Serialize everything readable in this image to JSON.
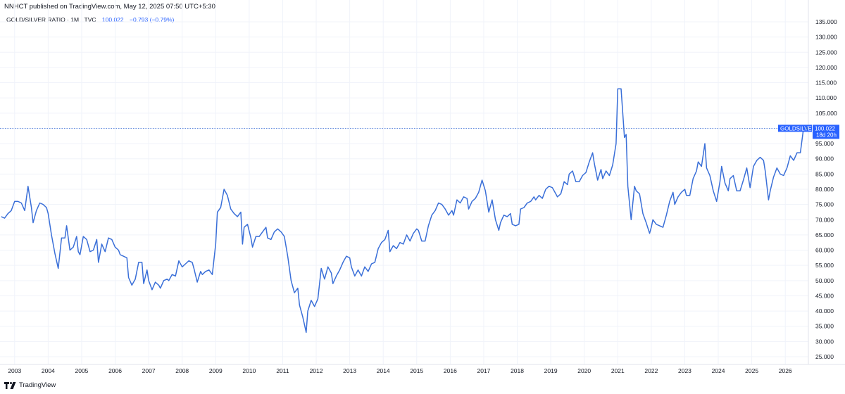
{
  "header": {
    "published": "NNHCT published on TradingView.com, May 12, 2025 07:50 UTC+5:30"
  },
  "legend": {
    "symbol": "GOLD/SILVER RATIO · 1M · TVC",
    "value": "100.022",
    "change": "−0.793 (−0.79%)"
  },
  "price_label": {
    "ticker": "GOLDSILVER",
    "value": "100.022",
    "countdown": "18d 20h"
  },
  "footer": {
    "brand": "TradingView"
  },
  "colors": {
    "line": "#3a6fd8",
    "accent": "#2962ff",
    "badge": "#2962ff"
  },
  "chart_data": {
    "type": "line",
    "ylim": [
      22.5,
      137.5
    ],
    "y_ticks": [
      "25.000",
      "30.000",
      "35.000",
      "40.000",
      "45.000",
      "50.000",
      "55.000",
      "60.000",
      "65.000",
      "70.000",
      "75.000",
      "80.000",
      "85.000",
      "90.000",
      "95.000",
      "100.000",
      "105.000",
      "110.000",
      "115.000",
      "120.000",
      "125.000",
      "130.000",
      "135.000"
    ],
    "x_ticks": [
      "2003",
      "2004",
      "2005",
      "2006",
      "2007",
      "2008",
      "2009",
      "2010",
      "2011",
      "2012",
      "2013",
      "2014",
      "2015",
      "2016",
      "2017",
      "2018",
      "2019",
      "2020",
      "2021",
      "2022",
      "2023",
      "2024",
      "2025",
      "2026"
    ],
    "last_value": 100.022,
    "series": [
      {
        "points": [
          [
            2002.6,
            71.0
          ],
          [
            2002.7,
            70.5
          ],
          [
            2002.8,
            72.0
          ],
          [
            2002.9,
            73.0
          ],
          [
            2003.0,
            76.0
          ],
          [
            2003.1,
            76.0
          ],
          [
            2003.2,
            75.5
          ],
          [
            2003.3,
            73.0
          ],
          [
            2003.4,
            81.0
          ],
          [
            2003.5,
            74.0
          ],
          [
            2003.55,
            69.0
          ],
          [
            2003.65,
            73.0
          ],
          [
            2003.75,
            75.5
          ],
          [
            2003.85,
            75.0
          ],
          [
            2003.95,
            74.0
          ],
          [
            2004.0,
            72.0
          ],
          [
            2004.1,
            65.0
          ],
          [
            2004.2,
            59.0
          ],
          [
            2004.3,
            54.0
          ],
          [
            2004.4,
            64.0
          ],
          [
            2004.5,
            64.0
          ],
          [
            2004.55,
            68.0
          ],
          [
            2004.65,
            60.0
          ],
          [
            2004.75,
            61.0
          ],
          [
            2004.85,
            64.5
          ],
          [
            2004.9,
            59.5
          ],
          [
            2004.95,
            58.5
          ],
          [
            2005.05,
            64.5
          ],
          [
            2005.15,
            63.5
          ],
          [
            2005.25,
            59.5
          ],
          [
            2005.35,
            60.0
          ],
          [
            2005.45,
            63.5
          ],
          [
            2005.5,
            56.0
          ],
          [
            2005.6,
            62.0
          ],
          [
            2005.7,
            59.5
          ],
          [
            2005.8,
            64.0
          ],
          [
            2005.9,
            63.5
          ],
          [
            2006.0,
            61.0
          ],
          [
            2006.1,
            60.0
          ],
          [
            2006.15,
            58.5
          ],
          [
            2006.25,
            58.0
          ],
          [
            2006.35,
            57.5
          ],
          [
            2006.4,
            51.0
          ],
          [
            2006.5,
            48.5
          ],
          [
            2006.6,
            50.5
          ],
          [
            2006.7,
            56.0
          ],
          [
            2006.8,
            56.0
          ],
          [
            2006.85,
            49.0
          ],
          [
            2006.95,
            53.5
          ],
          [
            2007.0,
            50.0
          ],
          [
            2007.1,
            47.0
          ],
          [
            2007.2,
            49.5
          ],
          [
            2007.3,
            48.5
          ],
          [
            2007.35,
            47.5
          ],
          [
            2007.45,
            50.0
          ],
          [
            2007.55,
            50.5
          ],
          [
            2007.6,
            50.0
          ],
          [
            2007.7,
            52.0
          ],
          [
            2007.8,
            51.5
          ],
          [
            2007.9,
            56.5
          ],
          [
            2008.0,
            54.5
          ],
          [
            2008.1,
            55.5
          ],
          [
            2008.2,
            56.5
          ],
          [
            2008.3,
            56.0
          ],
          [
            2008.35,
            54.0
          ],
          [
            2008.45,
            49.5
          ],
          [
            2008.55,
            53.0
          ],
          [
            2008.6,
            52.0
          ],
          [
            2008.7,
            53.0
          ],
          [
            2008.8,
            53.5
          ],
          [
            2008.9,
            52.0
          ],
          [
            2009.0,
            62.0
          ],
          [
            2009.05,
            72.5
          ],
          [
            2009.15,
            74.0
          ],
          [
            2009.25,
            80.0
          ],
          [
            2009.35,
            78.0
          ],
          [
            2009.45,
            73.5
          ],
          [
            2009.55,
            72.0
          ],
          [
            2009.65,
            71.0
          ],
          [
            2009.75,
            72.5
          ],
          [
            2009.8,
            62.0
          ],
          [
            2009.85,
            67.5
          ],
          [
            2009.95,
            68.5
          ],
          [
            2010.05,
            64.0
          ],
          [
            2010.1,
            61.0
          ],
          [
            2010.2,
            64.5
          ],
          [
            2010.3,
            64.5
          ],
          [
            2010.4,
            66.0
          ],
          [
            2010.5,
            67.5
          ],
          [
            2010.55,
            64.0
          ],
          [
            2010.65,
            63.5
          ],
          [
            2010.75,
            66.0
          ],
          [
            2010.85,
            67.0
          ],
          [
            2010.95,
            66.0
          ],
          [
            2011.05,
            64.5
          ],
          [
            2011.15,
            58.0
          ],
          [
            2011.25,
            50.0
          ],
          [
            2011.35,
            46.0
          ],
          [
            2011.45,
            47.5
          ],
          [
            2011.5,
            42.0
          ],
          [
            2011.6,
            38.0
          ],
          [
            2011.7,
            33.0
          ],
          [
            2011.75,
            40.0
          ],
          [
            2011.85,
            43.5
          ],
          [
            2011.95,
            41.5
          ],
          [
            2012.05,
            44.0
          ],
          [
            2012.15,
            54.0
          ],
          [
            2012.25,
            50.5
          ],
          [
            2012.35,
            54.5
          ],
          [
            2012.45,
            52.5
          ],
          [
            2012.5,
            49.0
          ],
          [
            2012.6,
            51.5
          ],
          [
            2012.7,
            53.5
          ],
          [
            2012.8,
            56.0
          ],
          [
            2012.9,
            58.0
          ],
          [
            2013.0,
            57.5
          ],
          [
            2013.05,
            54.5
          ],
          [
            2013.15,
            51.5
          ],
          [
            2013.25,
            53.5
          ],
          [
            2013.35,
            51.5
          ],
          [
            2013.45,
            54.5
          ],
          [
            2013.55,
            53.0
          ],
          [
            2013.65,
            55.5
          ],
          [
            2013.75,
            56.0
          ],
          [
            2013.85,
            60.5
          ],
          [
            2013.95,
            62.5
          ],
          [
            2014.05,
            63.5
          ],
          [
            2014.15,
            66.5
          ],
          [
            2014.2,
            59.5
          ],
          [
            2014.3,
            61.5
          ],
          [
            2014.4,
            60.5
          ],
          [
            2014.5,
            62.5
          ],
          [
            2014.6,
            62.0
          ],
          [
            2014.7,
            65.0
          ],
          [
            2014.8,
            63.0
          ],
          [
            2014.9,
            65.5
          ],
          [
            2015.0,
            67.0
          ],
          [
            2015.05,
            66.5
          ],
          [
            2015.15,
            63.0
          ],
          [
            2015.25,
            63.0
          ],
          [
            2015.35,
            68.0
          ],
          [
            2015.45,
            71.5
          ],
          [
            2015.55,
            73.0
          ],
          [
            2015.65,
            75.5
          ],
          [
            2015.75,
            75.0
          ],
          [
            2015.85,
            73.5
          ],
          [
            2015.95,
            71.5
          ],
          [
            2016.05,
            73.0
          ],
          [
            2016.1,
            71.5
          ],
          [
            2016.2,
            76.5
          ],
          [
            2016.3,
            75.5
          ],
          [
            2016.4,
            77.5
          ],
          [
            2016.5,
            77.0
          ],
          [
            2016.55,
            73.5
          ],
          [
            2016.65,
            76.0
          ],
          [
            2016.75,
            77.0
          ],
          [
            2016.85,
            79.0
          ],
          [
            2016.95,
            83.0
          ],
          [
            2017.05,
            79.5
          ],
          [
            2017.15,
            72.5
          ],
          [
            2017.25,
            76.5
          ],
          [
            2017.35,
            70.0
          ],
          [
            2017.45,
            66.5
          ],
          [
            2017.5,
            69.0
          ],
          [
            2017.6,
            71.5
          ],
          [
            2017.7,
            71.0
          ],
          [
            2017.8,
            72.0
          ],
          [
            2017.85,
            68.5
          ],
          [
            2017.95,
            68.0
          ],
          [
            2018.05,
            68.5
          ],
          [
            2018.1,
            73.5
          ],
          [
            2018.2,
            74.0
          ],
          [
            2018.3,
            75.5
          ],
          [
            2018.4,
            76.0
          ],
          [
            2018.5,
            77.5
          ],
          [
            2018.55,
            76.5
          ],
          [
            2018.65,
            78.0
          ],
          [
            2018.75,
            77.0
          ],
          [
            2018.85,
            80.0
          ],
          [
            2018.95,
            81.0
          ],
          [
            2019.05,
            80.5
          ],
          [
            2019.15,
            78.5
          ],
          [
            2019.2,
            77.5
          ],
          [
            2019.3,
            78.5
          ],
          [
            2019.4,
            82.5
          ],
          [
            2019.5,
            81.5
          ],
          [
            2019.55,
            85.0
          ],
          [
            2019.65,
            86.0
          ],
          [
            2019.75,
            82.5
          ],
          [
            2019.85,
            82.5
          ],
          [
            2019.95,
            84.5
          ],
          [
            2020.05,
            85.5
          ],
          [
            2020.15,
            89.0
          ],
          [
            2020.25,
            92.0
          ],
          [
            2020.3,
            88.5
          ],
          [
            2020.4,
            83.0
          ],
          [
            2020.5,
            86.5
          ],
          [
            2020.55,
            83.5
          ],
          [
            2020.65,
            86.0
          ],
          [
            2020.75,
            84.5
          ],
          [
            2020.85,
            88.0
          ],
          [
            2020.95,
            95.0
          ],
          [
            2021.0,
            113.0
          ],
          [
            2021.1,
            113.0
          ],
          [
            2021.2,
            97.0
          ],
          [
            2021.25,
            98.0
          ],
          [
            2021.3,
            81.0
          ],
          [
            2021.4,
            70.0
          ],
          [
            2021.5,
            81.0
          ],
          [
            2021.55,
            79.5
          ],
          [
            2021.65,
            78.5
          ],
          [
            2021.75,
            72.0
          ],
          [
            2021.85,
            69.0
          ],
          [
            2021.95,
            65.5
          ],
          [
            2022.0,
            67.5
          ],
          [
            2022.05,
            70.0
          ],
          [
            2022.15,
            68.5
          ],
          [
            2022.25,
            68.0
          ],
          [
            2022.35,
            67.5
          ],
          [
            2022.45,
            71.5
          ],
          [
            2022.55,
            76.0
          ],
          [
            2022.65,
            79.0
          ],
          [
            2022.7,
            75.0
          ],
          [
            2022.8,
            77.5
          ],
          [
            2022.9,
            79.0
          ],
          [
            2023.0,
            80.0
          ],
          [
            2023.05,
            78.0
          ],
          [
            2023.15,
            78.0
          ],
          [
            2023.25,
            83.5
          ],
          [
            2023.35,
            86.0
          ],
          [
            2023.4,
            89.0
          ],
          [
            2023.5,
            87.5
          ],
          [
            2023.6,
            95.0
          ],
          [
            2023.65,
            87.0
          ],
          [
            2023.75,
            84.5
          ],
          [
            2023.85,
            79.5
          ],
          [
            2023.95,
            76.0
          ],
          [
            2024.05,
            82.5
          ],
          [
            2024.1,
            87.5
          ],
          [
            2024.2,
            82.0
          ],
          [
            2024.3,
            79.5
          ],
          [
            2024.35,
            83.5
          ],
          [
            2024.45,
            84.5
          ],
          [
            2024.55,
            79.5
          ],
          [
            2024.65,
            79.5
          ],
          [
            2024.75,
            83.0
          ],
          [
            2024.85,
            87.0
          ],
          [
            2024.95,
            80.5
          ],
          [
            2025.05,
            87.5
          ],
          [
            2025.15,
            89.5
          ],
          [
            2025.25,
            90.5
          ],
          [
            2025.35,
            89.5
          ],
          [
            2025.4,
            86.0
          ],
          [
            2025.5,
            76.5
          ],
          [
            2025.55,
            79.5
          ],
          [
            2025.65,
            84.0
          ],
          [
            2025.75,
            87.0
          ],
          [
            2025.85,
            85.0
          ],
          [
            2025.95,
            84.5
          ],
          [
            2026.05,
            87.0
          ],
          [
            2026.15,
            91.0
          ],
          [
            2026.25,
            89.5
          ],
          [
            2026.35,
            92.0
          ],
          [
            2026.45,
            92.0
          ],
          [
            2026.55,
            100.5
          ],
          [
            2026.6,
            100.0
          ],
          [
            2026.65,
            100.022
          ]
        ]
      }
    ]
  }
}
